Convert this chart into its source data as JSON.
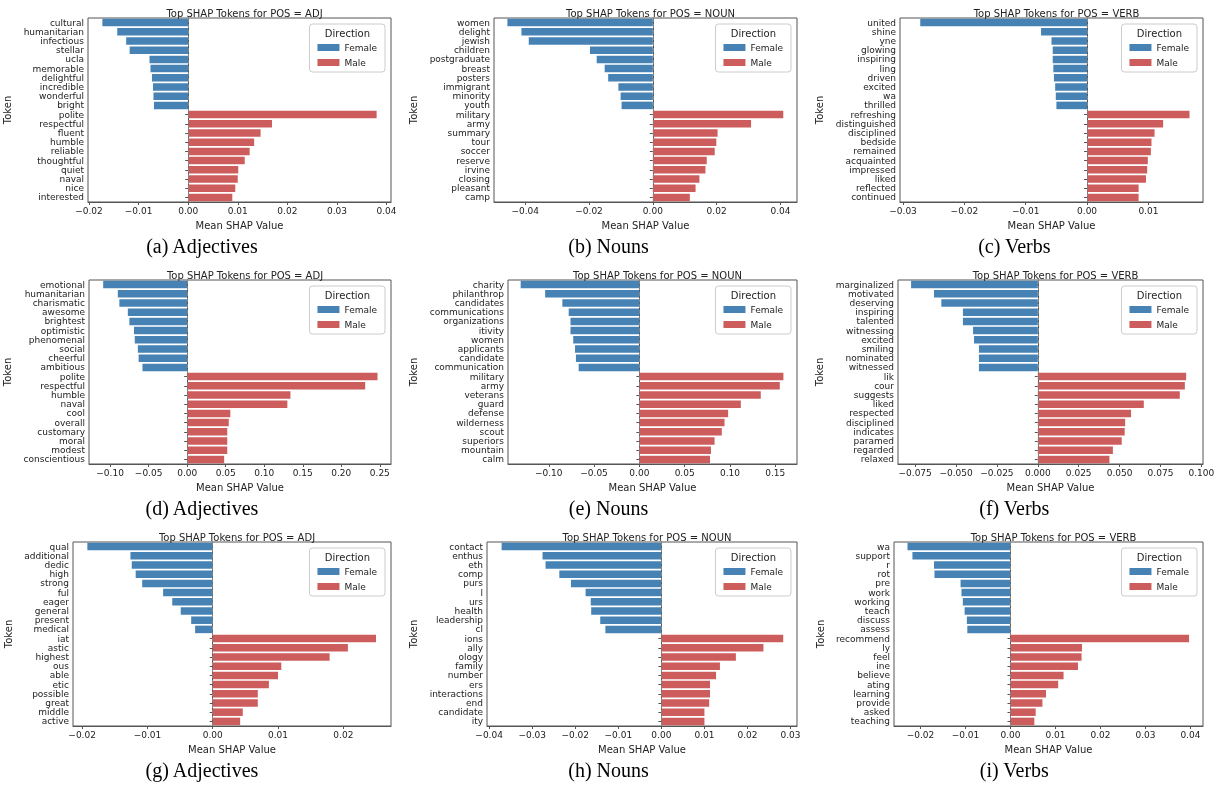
{
  "chart_data": [
    {
      "type": "bar",
      "orientation": "horizontal",
      "title": "Top SHAP Tokens for POS = ADJ",
      "xlabel": "Mean SHAP Value",
      "ylabel": "Token",
      "legend": "top right",
      "legend_title": "Direction",
      "annotations": [
        "(a) Adjectives"
      ],
      "categories": [
        "cultural",
        "humanitarian",
        "infectious",
        "stellar",
        "ucla",
        "memorable",
        "delightful",
        "incredible",
        "wonderful",
        "bright",
        "polite",
        "respectful",
        "fluent",
        "humble",
        "reliable",
        "thoughtful",
        "quiet",
        "naval",
        "nice",
        "interested"
      ],
      "series": [
        {
          "name": "Female",
          "color": "#4682b4",
          "values": [
            -0.0173,
            -0.0143,
            -0.0125,
            -0.0118,
            -0.0078,
            -0.0076,
            -0.0073,
            -0.0071,
            -0.007,
            -0.0069,
            null,
            null,
            null,
            null,
            null,
            null,
            null,
            null,
            null,
            null
          ]
        },
        {
          "name": "Male",
          "color": "#cd5c5c",
          "values": [
            null,
            null,
            null,
            null,
            null,
            null,
            null,
            null,
            null,
            null,
            0.038,
            0.0169,
            0.0146,
            0.0133,
            0.0124,
            0.0114,
            0.0101,
            0.01,
            0.0095,
            0.0089
          ]
        }
      ],
      "xlim": [
        -0.0202,
        0.0409
      ],
      "xticks": [
        {
          "value": -0.02,
          "label": "−0.02"
        },
        {
          "value": -0.01,
          "label": "−0.01"
        },
        {
          "value": 0,
          "label": "0.00"
        },
        {
          "value": 0.01,
          "label": "0.01"
        },
        {
          "value": 0.02,
          "label": "0.02"
        },
        {
          "value": 0.03,
          "label": "0.03"
        },
        {
          "value": 0.04,
          "label": "0.04"
        }
      ],
      "ref_lines": [
        {
          "axis": "x",
          "value": 0,
          "color": "#808080",
          "line_style": "dashed"
        }
      ]
    },
    {
      "type": "bar",
      "orientation": "horizontal",
      "title": "Top SHAP Tokens for POS = NOUN",
      "xlabel": "Mean SHAP Value",
      "ylabel": "Token",
      "legend": "top right",
      "legend_title": "Direction",
      "annotations": [
        "(b) Nouns"
      ],
      "categories": [
        "women",
        "delight",
        "jewish",
        "children",
        "postgraduate",
        "breast",
        "posters",
        "immigrant",
        "minority",
        "youth",
        "military",
        "army",
        "summary",
        "tour",
        "soccer",
        "reserve",
        "irvine",
        "closing",
        "pleasant",
        "camp"
      ],
      "series": [
        {
          "name": "Female",
          "color": "#4682b4",
          "values": [
            -0.0456,
            -0.0412,
            -0.0389,
            -0.0197,
            -0.0176,
            -0.0151,
            -0.014,
            -0.0108,
            -0.0101,
            -0.0098,
            null,
            null,
            null,
            null,
            null,
            null,
            null,
            null,
            null,
            null
          ]
        },
        {
          "name": "Male",
          "color": "#cd5c5c",
          "values": [
            null,
            null,
            null,
            null,
            null,
            null,
            null,
            null,
            null,
            null,
            0.0409,
            0.0308,
            0.0203,
            0.0199,
            0.0194,
            0.0169,
            0.0165,
            0.0146,
            0.0134,
            0.0116
          ]
        }
      ],
      "xlim": [
        -0.0498,
        0.0452
      ],
      "xticks": [
        {
          "value": -0.04,
          "label": "−0.04"
        },
        {
          "value": -0.02,
          "label": "−0.02"
        },
        {
          "value": 0,
          "label": "0.00"
        },
        {
          "value": 0.02,
          "label": "0.02"
        },
        {
          "value": 0.04,
          "label": "0.04"
        }
      ],
      "ref_lines": [
        {
          "axis": "x",
          "value": 0,
          "color": "#808080",
          "line_style": "dashed"
        }
      ]
    },
    {
      "type": "bar",
      "orientation": "horizontal",
      "title": "Top SHAP Tokens for POS = VERB",
      "xlabel": "Mean SHAP Value",
      "ylabel": "Token",
      "legend": "top right",
      "legend_title": "Direction",
      "annotations": [
        "(c) Verbs"
      ],
      "categories": [
        "united",
        "shine",
        "yne",
        "glowing",
        "inspiring",
        "ling",
        "driven",
        "excited",
        "wa",
        "thrilled",
        "refreshing",
        "distinguished",
        "disciplined",
        "bedside",
        "remained",
        "acquainted",
        "impressed",
        "liked",
        "reflected",
        "continued"
      ],
      "series": [
        {
          "name": "Female",
          "color": "#4682b4",
          "values": [
            -0.0272,
            -0.0075,
            -0.0058,
            -0.0056,
            -0.0056,
            -0.0055,
            -0.0054,
            -0.0052,
            -0.0051,
            -0.005,
            null,
            null,
            null,
            null,
            null,
            null,
            null,
            null,
            null,
            null
          ]
        },
        {
          "name": "Male",
          "color": "#cd5c5c",
          "values": [
            null,
            null,
            null,
            null,
            null,
            null,
            null,
            null,
            null,
            null,
            0.0167,
            0.0124,
            0.011,
            0.0105,
            0.0104,
            0.0099,
            0.0098,
            0.0096,
            0.0084,
            0.0084
          ]
        }
      ],
      "xlim": [
        -0.0305,
        0.0189
      ],
      "xticks": [
        {
          "value": -0.03,
          "label": "−0.03"
        },
        {
          "value": -0.02,
          "label": "−0.02"
        },
        {
          "value": -0.01,
          "label": "−0.01"
        },
        {
          "value": 0,
          "label": "0.00"
        },
        {
          "value": 0.01,
          "label": "0.01"
        }
      ],
      "ref_lines": [
        {
          "axis": "x",
          "value": 0,
          "color": "#808080",
          "line_style": "dashed"
        }
      ]
    },
    {
      "type": "bar",
      "orientation": "horizontal",
      "title": "Top SHAP Tokens for POS = ADJ",
      "xlabel": "Mean SHAP Value",
      "ylabel": "Token",
      "legend": "top right",
      "legend_title": "Direction",
      "annotations": [
        "(d) Adjectives"
      ],
      "categories": [
        "emotional",
        "humanitarian",
        "charismatic",
        "awesome",
        "brightest",
        "optimistic",
        "phenomenal",
        "social",
        "cheerful",
        "ambitious",
        "polite",
        "respectful",
        "humble",
        "naval",
        "cool",
        "overall",
        "customary",
        "moral",
        "modest",
        "conscientious"
      ],
      "series": [
        {
          "name": "Female",
          "color": "#4682b4",
          "values": [
            -0.109,
            -0.09,
            -0.088,
            -0.077,
            -0.075,
            -0.069,
            -0.068,
            -0.064,
            -0.063,
            -0.058,
            null,
            null,
            null,
            null,
            null,
            null,
            null,
            null,
            null,
            null
          ]
        },
        {
          "name": "Male",
          "color": "#cd5c5c",
          "values": [
            null,
            null,
            null,
            null,
            null,
            null,
            null,
            null,
            null,
            null,
            0.247,
            0.231,
            0.134,
            0.13,
            0.056,
            0.054,
            0.052,
            0.052,
            0.052,
            0.048
          ]
        }
      ],
      "xlim": [
        -0.1274,
        0.2645
      ],
      "xticks": [
        {
          "value": -0.1,
          "label": "−0.10"
        },
        {
          "value": -0.05,
          "label": "−0.05"
        },
        {
          "value": 0,
          "label": "0.00"
        },
        {
          "value": 0.05,
          "label": "0.05"
        },
        {
          "value": 0.1,
          "label": "0.10"
        },
        {
          "value": 0.15,
          "label": "0.15"
        },
        {
          "value": 0.2,
          "label": "0.20"
        },
        {
          "value": 0.25,
          "label": "0.25"
        }
      ],
      "ref_lines": [
        {
          "axis": "x",
          "value": 0,
          "color": "#808080",
          "line_style": "dashed"
        }
      ]
    },
    {
      "type": "bar",
      "orientation": "horizontal",
      "title": "Top SHAP Tokens for POS = NOUN",
      "xlabel": "Mean SHAP Value",
      "ylabel": "Token",
      "legend": "top right",
      "legend_title": "Direction",
      "annotations": [
        "(e) Nouns"
      ],
      "categories": [
        "charity",
        "philanthrop",
        "candidates",
        "communications",
        "organizations",
        "itivity",
        "women",
        "applicants",
        "candidate",
        "communication",
        "military",
        "army",
        "veterans",
        "guard",
        "defense",
        "wilderness",
        "scout",
        "superiors",
        "mountain",
        "calm"
      ],
      "series": [
        {
          "name": "Female",
          "color": "#4682b4",
          "values": [
            -0.131,
            -0.104,
            -0.085,
            -0.078,
            -0.076,
            -0.076,
            -0.073,
            -0.071,
            -0.07,
            -0.067,
            null,
            null,
            null,
            null,
            null,
            null,
            null,
            null,
            null,
            null
          ]
        },
        {
          "name": "Male",
          "color": "#cd5c5c",
          "values": [
            null,
            null,
            null,
            null,
            null,
            null,
            null,
            null,
            null,
            null,
            0.159,
            0.155,
            0.134,
            0.112,
            0.098,
            0.094,
            0.091,
            0.083,
            0.079,
            0.078
          ]
        }
      ],
      "xlim": [
        -0.145,
        0.174
      ],
      "xticks": [
        {
          "value": -0.1,
          "label": "−0.10"
        },
        {
          "value": -0.05,
          "label": "−0.05"
        },
        {
          "value": 0,
          "label": "0.00"
        },
        {
          "value": 0.05,
          "label": "0.05"
        },
        {
          "value": 0.1,
          "label": "0.10"
        },
        {
          "value": 0.15,
          "label": "0.15"
        }
      ],
      "ref_lines": [
        {
          "axis": "x",
          "value": 0,
          "color": "#808080",
          "line_style": "dashed"
        }
      ]
    },
    {
      "type": "bar",
      "orientation": "horizontal",
      "title": "Top SHAP Tokens for POS = VERB",
      "xlabel": "Mean SHAP Value",
      "ylabel": "Token",
      "legend": "top right",
      "legend_title": "Direction",
      "annotations": [
        "(f) Verbs"
      ],
      "categories": [
        "marginalized",
        "motivated",
        "deserving",
        "inspiring",
        "talented",
        "witnessing",
        "excited",
        "smiling",
        "nominated",
        "witnessed",
        "lik",
        "cour",
        "suggests",
        "liked",
        "respected",
        "disciplined",
        "indicates",
        "paramed",
        "regarded",
        "relaxed"
      ],
      "series": [
        {
          "name": "Female",
          "color": "#4682b4",
          "values": [
            -0.0775,
            -0.0635,
            -0.059,
            -0.0458,
            -0.0458,
            -0.0396,
            -0.039,
            -0.036,
            -0.036,
            -0.036,
            null,
            null,
            null,
            null,
            null,
            null,
            null,
            null,
            null,
            null
          ]
        },
        {
          "name": "Male",
          "color": "#cd5c5c",
          "values": [
            null,
            null,
            null,
            null,
            null,
            null,
            null,
            null,
            null,
            null,
            0.0907,
            0.0899,
            0.0868,
            0.0648,
            0.057,
            0.0534,
            0.0531,
            0.0513,
            0.0459,
            0.0438
          ]
        }
      ],
      "xlim": [
        -0.0855,
        0.101
      ],
      "xticks": [
        {
          "value": -0.075,
          "label": "−0.075"
        },
        {
          "value": -0.05,
          "label": "−0.050"
        },
        {
          "value": -0.025,
          "label": "−0.025"
        },
        {
          "value": 0,
          "label": "0.000"
        },
        {
          "value": 0.025,
          "label": "0.025"
        },
        {
          "value": 0.05,
          "label": "0.050"
        },
        {
          "value": 0.075,
          "label": "0.075"
        },
        {
          "value": 0.1,
          "label": "0.100"
        }
      ],
      "ref_lines": [
        {
          "axis": "x",
          "value": 0,
          "color": "#808080",
          "line_style": "dashed"
        }
      ]
    },
    {
      "type": "bar",
      "orientation": "horizontal",
      "title": "Top SHAP Tokens for POS = ADJ",
      "xlabel": "Mean SHAP Value",
      "ylabel": "Token",
      "legend": "top right",
      "legend_title": "Direction",
      "annotations": [
        "(g) Adjectives"
      ],
      "categories": [
        "qual",
        "additional",
        "dedic",
        "high",
        "strong",
        "ful",
        "eager",
        "general",
        "present",
        "medical",
        "iat",
        "astic",
        "highest",
        "ous",
        "able",
        "etic",
        "possible",
        "great",
        "middle",
        "active"
      ],
      "series": [
        {
          "name": "Female",
          "color": "#4682b4",
          "values": [
            -0.0192,
            -0.0126,
            -0.0124,
            -0.0118,
            -0.0108,
            -0.0076,
            -0.0062,
            -0.0049,
            -0.0033,
            -0.0027,
            null,
            null,
            null,
            null,
            null,
            null,
            null,
            null,
            null,
            null
          ]
        },
        {
          "name": "Male",
          "color": "#cd5c5c",
          "values": [
            null,
            null,
            null,
            null,
            null,
            null,
            null,
            null,
            null,
            null,
            0.025,
            0.0207,
            0.0179,
            0.0105,
            0.01,
            0.0086,
            0.0069,
            0.0069,
            0.0046,
            0.0042
          ]
        }
      ],
      "xlim": [
        -0.0214,
        0.0273
      ],
      "xticks": [
        {
          "value": -0.02,
          "label": "−0.02"
        },
        {
          "value": -0.01,
          "label": "−0.01"
        },
        {
          "value": 0,
          "label": "0.00"
        },
        {
          "value": 0.01,
          "label": "0.01"
        },
        {
          "value": 0.02,
          "label": "0.02"
        }
      ],
      "ref_lines": [
        {
          "axis": "x",
          "value": 0,
          "color": "#808080",
          "line_style": "dashed"
        }
      ]
    },
    {
      "type": "bar",
      "orientation": "horizontal",
      "title": "Top SHAP Tokens for POS = NOUN",
      "xlabel": "Mean SHAP Value",
      "ylabel": "Token",
      "legend": "top right",
      "legend_title": "Direction",
      "annotations": [
        "(h) Nouns"
      ],
      "categories": [
        "contact",
        "enthus",
        "eth",
        "comp",
        "purs",
        "l",
        "urs",
        "health",
        "leadership",
        "cl",
        "ions",
        "ally",
        "ology",
        "family",
        "number",
        "ers",
        "interactions",
        "end",
        "candidate",
        "ity"
      ],
      "series": [
        {
          "name": "Female",
          "color": "#4682b4",
          "values": [
            -0.0371,
            -0.0276,
            -0.0269,
            -0.0237,
            -0.021,
            -0.0176,
            -0.0164,
            -0.0163,
            -0.0142,
            -0.013,
            null,
            null,
            null,
            null,
            null,
            null,
            null,
            null,
            null,
            null
          ]
        },
        {
          "name": "Male",
          "color": "#cd5c5c",
          "values": [
            null,
            null,
            null,
            null,
            null,
            null,
            null,
            null,
            null,
            null,
            0.0283,
            0.0237,
            0.0173,
            0.0136,
            0.0127,
            0.0113,
            0.0113,
            0.0111,
            0.01,
            0.01
          ]
        }
      ],
      "xlim": [
        -0.0405,
        0.0315
      ],
      "xticks": [
        {
          "value": -0.04,
          "label": "−0.04"
        },
        {
          "value": -0.03,
          "label": "−0.03"
        },
        {
          "value": -0.02,
          "label": "−0.02"
        },
        {
          "value": -0.01,
          "label": "−0.01"
        },
        {
          "value": 0,
          "label": "0.00"
        },
        {
          "value": 0.01,
          "label": "0.01"
        },
        {
          "value": 0.02,
          "label": "0.02"
        },
        {
          "value": 0.03,
          "label": "0.03"
        }
      ],
      "ref_lines": [
        {
          "axis": "x",
          "value": 0,
          "color": "#808080",
          "line_style": "dashed"
        }
      ]
    },
    {
      "type": "bar",
      "orientation": "horizontal",
      "title": "Top SHAP Tokens for POS = VERB",
      "xlabel": "Mean SHAP Value",
      "ylabel": "Token",
      "legend": "top right",
      "legend_title": "Direction",
      "annotations": [
        "(i) Verbs"
      ],
      "categories": [
        "wa",
        "support",
        "r",
        "rot",
        "pre",
        "work",
        "working",
        "teach",
        "discuss",
        "assess",
        "recommend",
        "ly",
        "feel",
        "ine",
        "believe",
        "ating",
        "learning",
        "provide",
        "asked",
        "teaching"
      ],
      "series": [
        {
          "name": "Female",
          "color": "#4682b4",
          "values": [
            -0.0229,
            -0.0218,
            -0.017,
            -0.0169,
            -0.0111,
            -0.0109,
            -0.0106,
            -0.0102,
            -0.0097,
            -0.0096,
            null,
            null,
            null,
            null,
            null,
            null,
            null,
            null,
            null,
            null
          ]
        },
        {
          "name": "Male",
          "color": "#cd5c5c",
          "values": [
            null,
            null,
            null,
            null,
            null,
            null,
            null,
            null,
            null,
            null,
            0.0397,
            0.0159,
            0.0158,
            0.015,
            0.0118,
            0.0106,
            0.0079,
            0.0071,
            0.0056,
            0.0053
          ]
        }
      ],
      "xlim": [
        -0.0259,
        0.0428
      ],
      "xticks": [
        {
          "value": -0.02,
          "label": "−0.02"
        },
        {
          "value": -0.01,
          "label": "−0.01"
        },
        {
          "value": 0,
          "label": "0.00"
        },
        {
          "value": 0.01,
          "label": "0.01"
        },
        {
          "value": 0.02,
          "label": "0.02"
        },
        {
          "value": 0.03,
          "label": "0.03"
        },
        {
          "value": 0.04,
          "label": "0.04"
        }
      ],
      "ref_lines": [
        {
          "axis": "x",
          "value": 0,
          "color": "#808080",
          "line_style": "dashed"
        }
      ]
    }
  ]
}
